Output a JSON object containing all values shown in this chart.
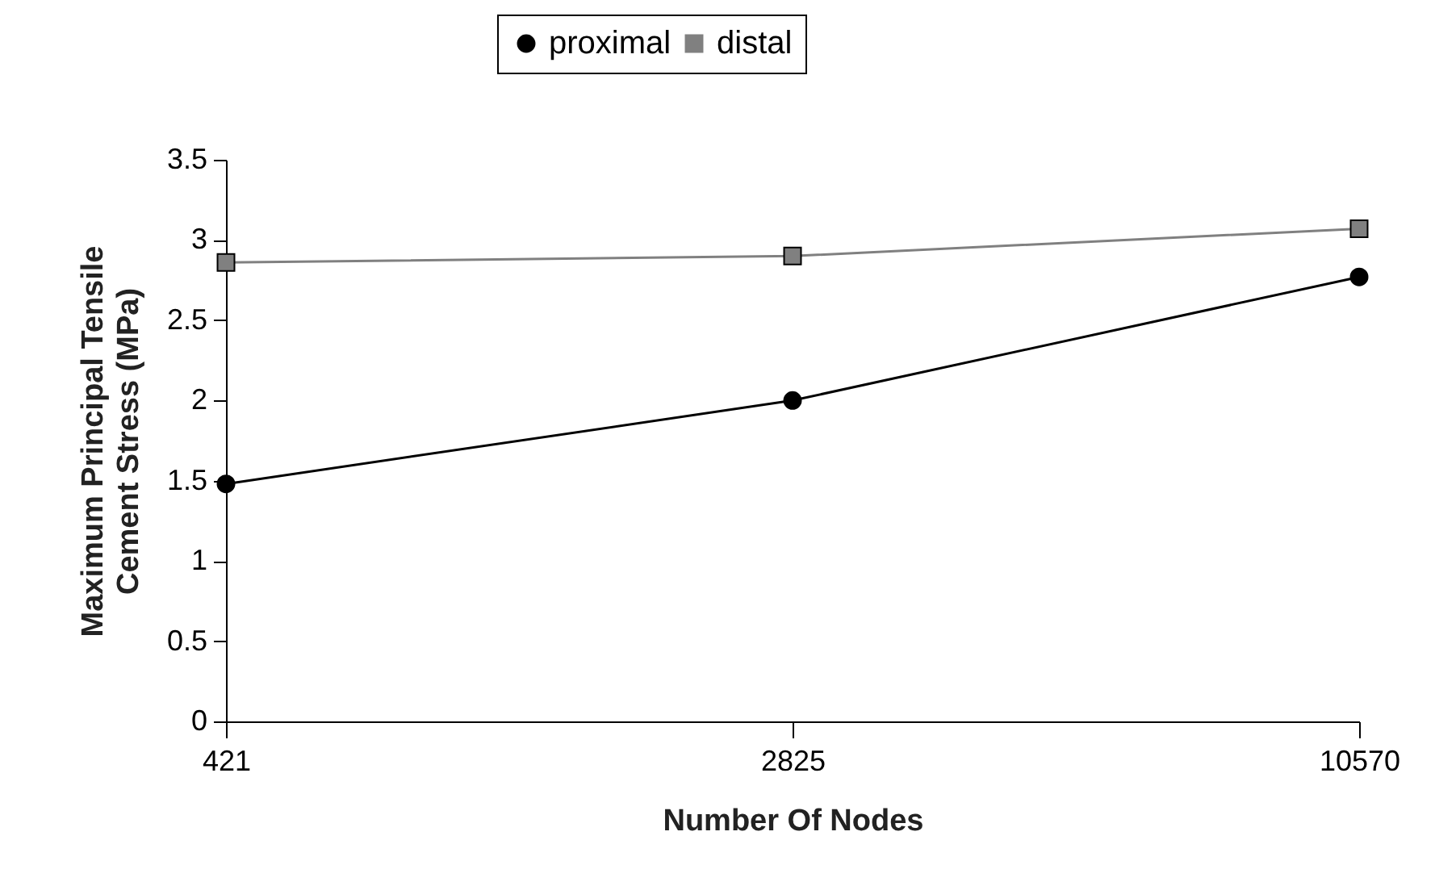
{
  "chart_data": {
    "type": "line",
    "xlabel": "Number Of Nodes",
    "ylabel": "Maximum Principal Tensile\nCement Stress (MPa)",
    "categories": [
      "421",
      "2825",
      "10570"
    ],
    "series": [
      {
        "name": "proximal",
        "color": "#000000",
        "marker": "circle",
        "values": [
          1.48,
          2.0,
          2.77
        ]
      },
      {
        "name": "distal",
        "color": "#808080",
        "marker": "square",
        "values": [
          2.86,
          2.9,
          3.07
        ]
      }
    ],
    "ylim": [
      0,
      3.5
    ],
    "yticks": [
      0,
      0.5,
      1,
      1.5,
      2,
      2.5,
      3,
      3.5
    ],
    "grid": false,
    "legend": "top"
  }
}
